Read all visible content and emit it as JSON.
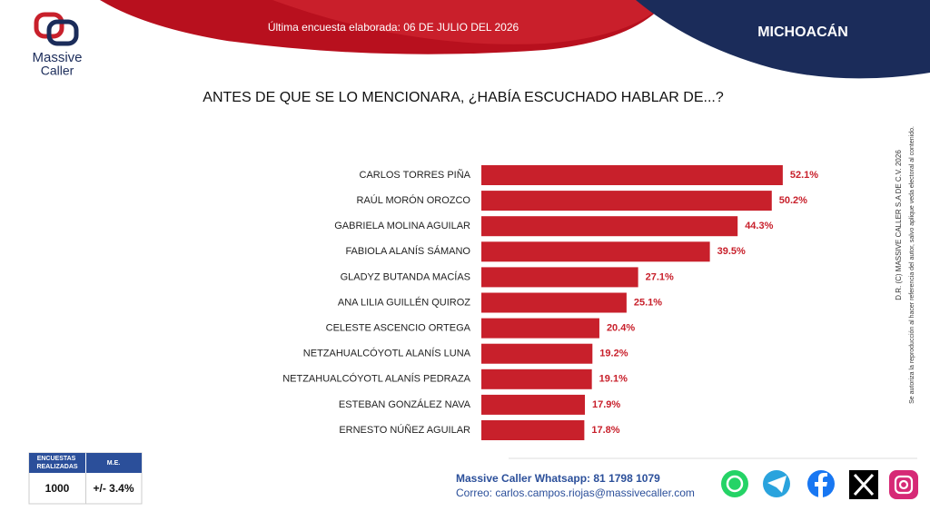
{
  "header": {
    "brand": "Massive",
    "brand_2": "Caller",
    "survey_date": "Última encuesta elaborada: 06 DE JULIO DEL 2026",
    "state": "MICHOACÁN"
  },
  "chart_data": {
    "type": "bar",
    "orientation": "horizontal",
    "title": "ANTES DE QUE SE LO MENCIONARA, ¿HABÍA ESCUCHADO HABLAR DE...?",
    "categories": [
      "CARLOS TORRES PIÑA",
      "RAÚL MORÓN OROZCO",
      "GABRIELA MOLINA AGUILAR",
      "FABIOLA ALANÍS SÁMANO",
      "GLADYZ BUTANDA MACÍAS",
      "ANA LILIA GUILLÉN QUIROZ",
      "CELESTE ASCENCIO ORTEGA",
      "NETZAHUALCÓYOTL ALANÍS LUNA",
      "NETZAHUALCÓYOTL ALANÍS PEDRAZA",
      "ESTEBAN GONZÁLEZ NAVA",
      "ERNESTO NÚÑEZ AGUILAR"
    ],
    "values": [
      52.1,
      50.2,
      44.3,
      39.5,
      27.1,
      25.1,
      20.4,
      19.2,
      19.1,
      17.9,
      17.8
    ],
    "value_labels": [
      "52.1%",
      "50.2%",
      "44.3%",
      "39.5%",
      "27.1%",
      "25.1%",
      "20.4%",
      "19.2%",
      "19.1%",
      "17.9%",
      "17.8%"
    ],
    "color": "#c8202b",
    "label_color": "#c8202b"
  },
  "side_note": {
    "copyright": "D.R. (C) MASSIVE CALLER S.A DE C.V. 2026",
    "notice": "Se autoriza la reproducción al hacer referencia del autor, salvo aplique veda electoral al contenido."
  },
  "sample_table": {
    "headers": [
      "ENCUESTAS REALIZADAS",
      "M.E."
    ],
    "row": [
      "1000",
      "+/- 3.4%"
    ]
  },
  "contact": {
    "whatsapp": "Massive Caller Whatsapp: 81 1798 1079",
    "email": "Correo: carlos.campos.riojas@massivecaller.com"
  }
}
